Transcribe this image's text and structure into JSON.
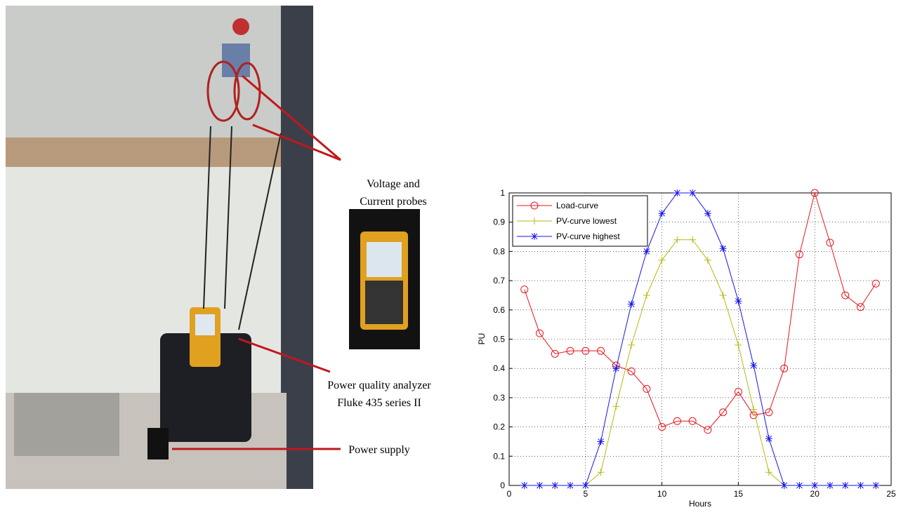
{
  "photo": {
    "labels": [
      "Voltage and",
      "Current probes",
      "Power quality analyzer",
      "Fluke 435 series II",
      "Power supply"
    ]
  },
  "chart_data": {
    "type": "line",
    "xlabel": "Hours",
    "ylabel": "PU",
    "x": [
      1,
      2,
      3,
      4,
      5,
      6,
      7,
      8,
      9,
      10,
      11,
      12,
      13,
      14,
      15,
      16,
      17,
      18,
      19,
      20,
      21,
      22,
      23,
      24
    ],
    "series": [
      {
        "name": "Load-curve",
        "color": "#e8141c",
        "marker": "o",
        "values": [
          0.67,
          0.52,
          0.45,
          0.46,
          0.46,
          0.46,
          0.41,
          0.39,
          0.33,
          0.2,
          0.22,
          0.22,
          0.19,
          0.25,
          0.32,
          0.24,
          0.25,
          0.4,
          0.79,
          1.0,
          0.83,
          0.65,
          0.61,
          0.69
        ]
      },
      {
        "name": "PV-curve lowest",
        "color": "#b8b814",
        "marker": "+",
        "values": [
          0,
          0,
          0,
          0,
          0,
          0.045,
          0.27,
          0.48,
          0.65,
          0.77,
          0.84,
          0.84,
          0.77,
          0.65,
          0.48,
          0.26,
          0.045,
          0,
          0,
          0,
          0,
          0,
          0,
          0
        ]
      },
      {
        "name": "PV-curve highest",
        "color": "#1414f0",
        "marker": "*",
        "values": [
          0,
          0,
          0,
          0,
          0,
          0.15,
          0.4,
          0.62,
          0.8,
          0.93,
          1.0,
          1.0,
          0.93,
          0.81,
          0.63,
          0.41,
          0.16,
          0,
          0,
          0,
          0,
          0,
          0,
          0
        ]
      }
    ],
    "xlim": [
      0,
      25
    ],
    "xticks": [
      0,
      5,
      10,
      15,
      20,
      25
    ],
    "ylim": [
      0,
      1
    ],
    "yticks": [
      0,
      0.1,
      0.2,
      0.3,
      0.4,
      0.5,
      0.6,
      0.7,
      0.8,
      0.9,
      1
    ],
    "grid": true,
    "legend": "upper left"
  }
}
